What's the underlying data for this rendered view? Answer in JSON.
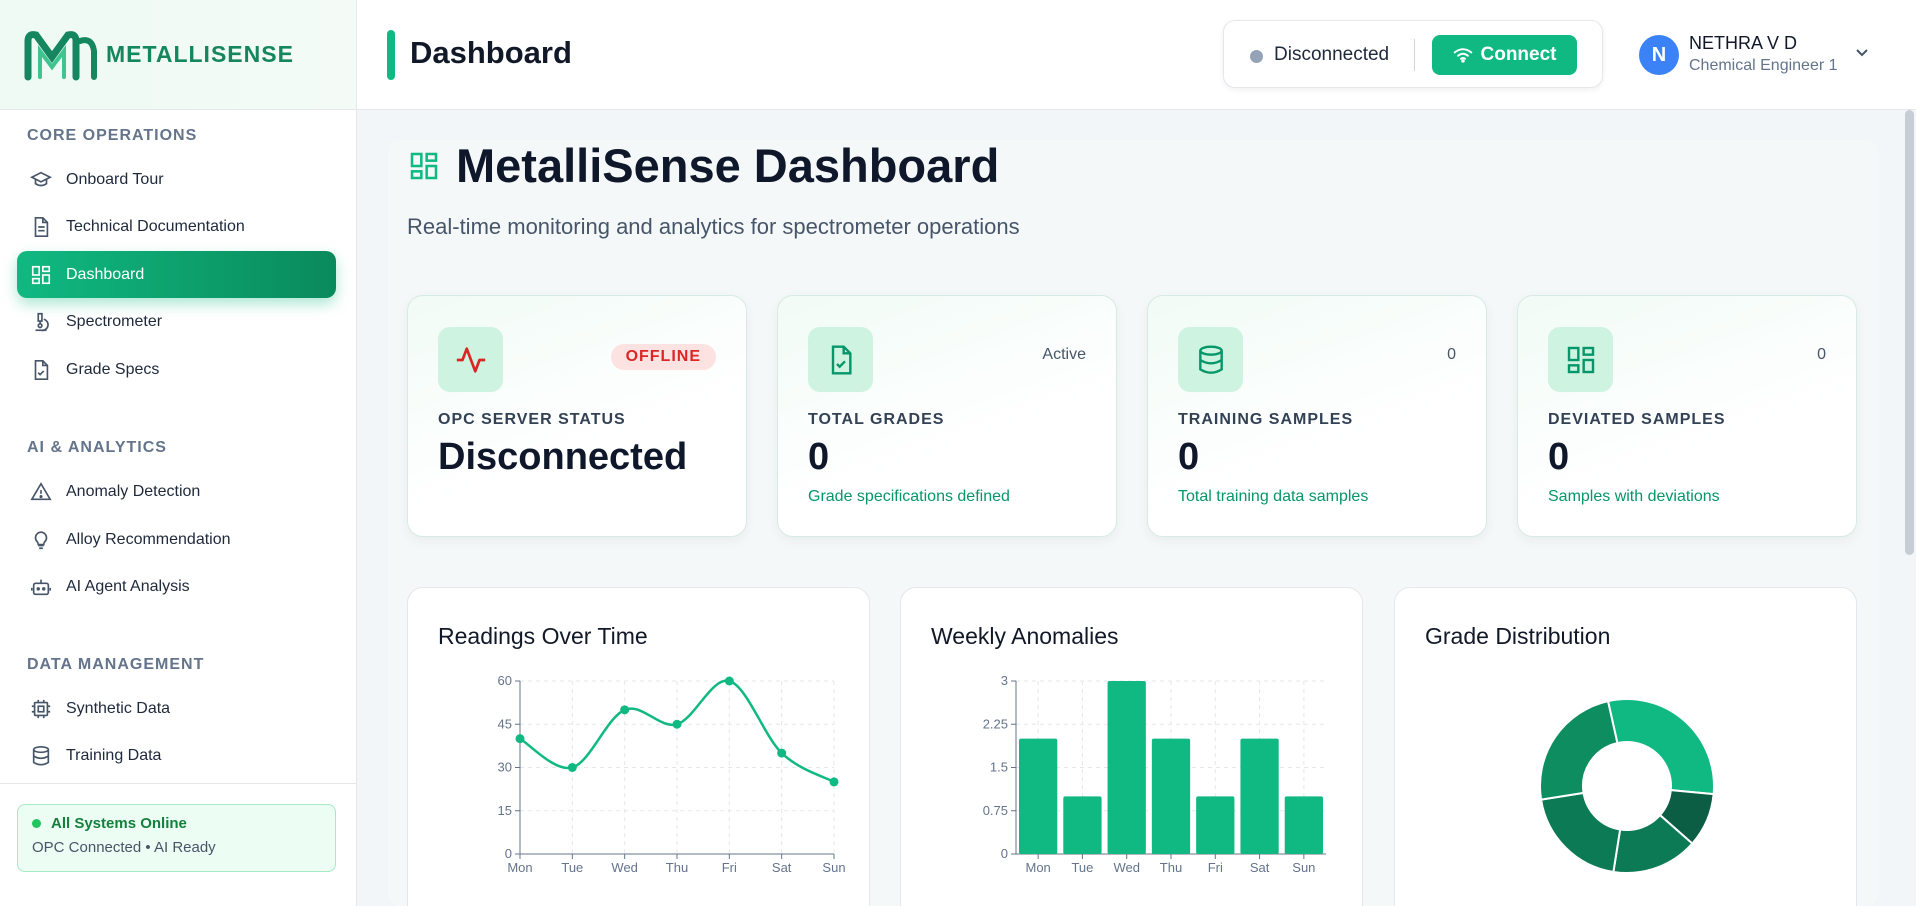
{
  "brand": {
    "name": "METALLISENSE"
  },
  "sidebar": {
    "sections": [
      {
        "title": "CORE OPERATIONS"
      },
      {
        "title": "AI & ANALYTICS"
      },
      {
        "title": "DATA MANAGEMENT"
      }
    ],
    "items": [
      {
        "label": "Onboard Tour",
        "icon": "graduation-cap-icon"
      },
      {
        "label": "Technical Documentation",
        "icon": "document-icon"
      },
      {
        "label": "Dashboard",
        "icon": "dashboard-grid-icon",
        "active": true
      },
      {
        "label": "Spectrometer",
        "icon": "microscope-icon"
      },
      {
        "label": "Grade Specs",
        "icon": "file-check-icon"
      },
      {
        "label": "Anomaly Detection",
        "icon": "warning-triangle-icon"
      },
      {
        "label": "Alloy Recommendation",
        "icon": "lightbulb-icon"
      },
      {
        "label": "AI Agent Analysis",
        "icon": "bot-icon"
      },
      {
        "label": "Synthetic Data",
        "icon": "chip-icon"
      },
      {
        "label": "Training Data",
        "icon": "database-icon"
      }
    ],
    "status": {
      "title": "All Systems Online",
      "detail": "OPC Connected • AI Ready"
    }
  },
  "header": {
    "title": "Dashboard",
    "connection_status": "Disconnected",
    "connect_label": "Connect",
    "user": {
      "initial": "N",
      "name": "NETHRA V D",
      "role": "Chemical Engineer 1"
    }
  },
  "main": {
    "title": "MetalliSense Dashboard",
    "subtitle": "Real-time monitoring and analytics for spectrometer operations"
  },
  "stats": [
    {
      "label": "OPC SERVER STATUS",
      "value": "Disconnected",
      "badge": "OFFLINE",
      "desc": "",
      "icon": "activity-icon"
    },
    {
      "label": "TOTAL GRADES",
      "value": "0",
      "badge": "Active",
      "desc": "Grade specifications defined",
      "icon": "file-check-icon"
    },
    {
      "label": "TRAINING SAMPLES",
      "value": "0",
      "badge": "0",
      "desc": "Total training data samples",
      "icon": "database-icon"
    },
    {
      "label": "DEVIATED SAMPLES",
      "value": "0",
      "badge": "0",
      "desc": "Samples with deviations",
      "icon": "dashboard-grid-icon"
    }
  ],
  "charts": {
    "readings_title": "Readings Over Time",
    "anomalies_title": "Weekly Anomalies",
    "distribution_title": "Grade Distribution"
  },
  "colors": {
    "accent": "#10b981",
    "accent_dark": "#0a8a5c",
    "offline": "#dc2626"
  },
  "chart_data": [
    {
      "type": "line",
      "title": "Readings Over Time",
      "categories": [
        "Mon",
        "Tue",
        "Wed",
        "Thu",
        "Fri",
        "Sat",
        "Sun"
      ],
      "values": [
        40,
        30,
        50,
        45,
        60,
        35,
        25
      ],
      "yticks": [
        "0",
        "15",
        "30",
        "45",
        "60"
      ],
      "ylim": [
        0,
        60
      ],
      "grid": true
    },
    {
      "type": "bar",
      "title": "Weekly Anomalies",
      "categories": [
        "Mon",
        "Tue",
        "Wed",
        "Thu",
        "Fri",
        "Sat",
        "Sun"
      ],
      "values": [
        2,
        1,
        3,
        2,
        1,
        2,
        1
      ],
      "yticks": [
        "0",
        "0.75",
        "1.5",
        "2.25",
        "3"
      ],
      "ylim": [
        0,
        3
      ],
      "grid": true
    },
    {
      "type": "pie",
      "title": "Grade Distribution",
      "values": [
        30,
        10,
        16,
        20,
        24
      ],
      "colors": [
        "#10b981",
        "#0b5e43",
        "#0c7a55",
        "#0c7a55",
        "#0d8d60"
      ]
    }
  ]
}
